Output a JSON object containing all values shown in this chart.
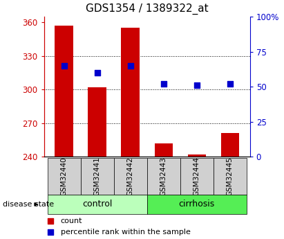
{
  "title": "GDS1354 / 1389322_at",
  "samples": [
    "GSM32440",
    "GSM32441",
    "GSM32442",
    "GSM32443",
    "GSM32444",
    "GSM32445"
  ],
  "counts": [
    357,
    302,
    355,
    252,
    242,
    261
  ],
  "percentiles": [
    65,
    60,
    65,
    52,
    51,
    52
  ],
  "baseline": 240,
  "ylim_left": [
    240,
    365
  ],
  "ylim_right": [
    0,
    100
  ],
  "yticks_left": [
    240,
    270,
    300,
    330,
    360
  ],
  "yticks_right": [
    0,
    25,
    50,
    75,
    100
  ],
  "ytick_labels_right": [
    "0",
    "25",
    "50",
    "75",
    "100%"
  ],
  "bar_color": "#cc0000",
  "dot_color": "#0000cc",
  "bar_width": 0.55,
  "control_label": "control",
  "cirrhosis_label": "cirrhosis",
  "disease_state_label": "disease state",
  "legend_count_label": "count",
  "legend_percentile_label": "percentile rank within the sample",
  "control_color": "#bbffbb",
  "cirrhosis_color": "#55ee55",
  "label_box_color": "#d0d0d0",
  "dot_size": 40,
  "title_fontsize": 11,
  "tick_fontsize": 8.5,
  "label_fontsize": 7.5,
  "figsize": [
    4.11,
    3.45
  ],
  "dpi": 100
}
